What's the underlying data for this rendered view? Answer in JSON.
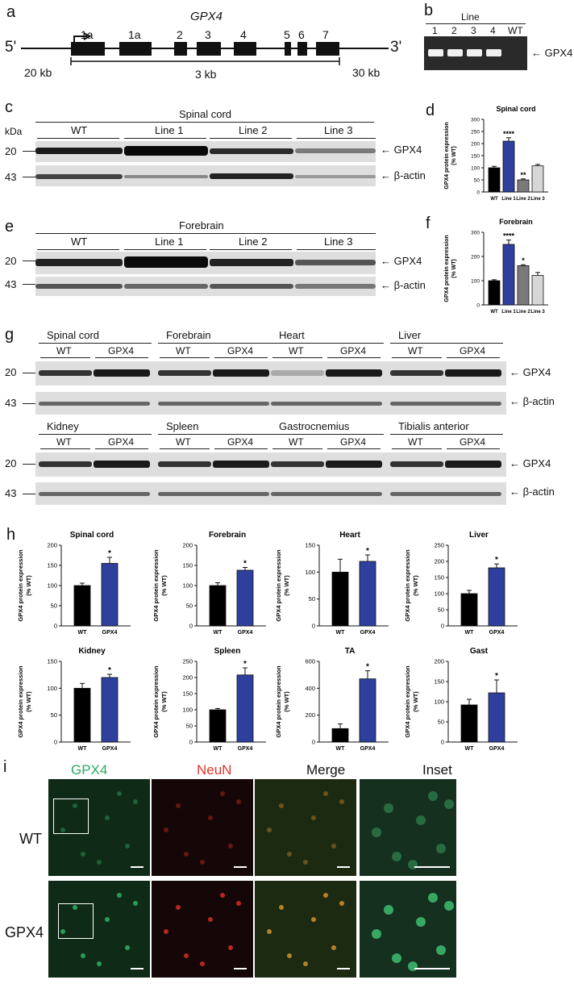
{
  "panels": {
    "a": "a",
    "b": "b",
    "c": "c",
    "d": "d",
    "e": "e",
    "f": "f",
    "g": "g",
    "h": "h",
    "i": "i"
  },
  "gene": {
    "title": "GPX4",
    "five": "5'",
    "three": "3'",
    "exons": [
      "1a",
      "1a",
      "2",
      "3",
      "4",
      "5",
      "6",
      "7"
    ],
    "left_len": "20 kb",
    "mid_len": "3 kb",
    "right_len": "30 kb"
  },
  "gel": {
    "header": "Line",
    "lanes": [
      "1",
      "2",
      "3",
      "4",
      "WT"
    ],
    "band_label": "GPX4"
  },
  "blot_c": {
    "title": "Spinal cord",
    "kda": "kDa",
    "groups": [
      "WT",
      "Line 1",
      "Line 2",
      "Line 3"
    ],
    "markers": [
      "20",
      "43"
    ],
    "labels": [
      "GPX4",
      "β-actin"
    ]
  },
  "blot_e": {
    "title": "Forebrain",
    "groups": [
      "WT",
      "Line 1",
      "Line 2",
      "Line 3"
    ],
    "markers": [
      "20",
      "43"
    ],
    "labels": [
      "GPX4",
      "β-actin"
    ]
  },
  "blot_g": {
    "top_tissues": [
      "Spinal cord",
      "Forebrain",
      "Heart",
      "Liver"
    ],
    "bottom_tissues": [
      "Kidney",
      "Spleen",
      "Gastrocnemius",
      "Tibialis anterior"
    ],
    "sub": [
      "WT",
      "GPX4"
    ],
    "markers": [
      "20",
      "43"
    ],
    "labels": [
      "GPX4",
      "β-actin"
    ]
  },
  "ylabel1": "GPX4 protein expression",
  "ylabel2": "(% WT)",
  "chart_data": [
    {
      "type": "bar",
      "title": "Spinal cord",
      "categories": [
        "WT",
        "Line 1",
        "Line 2",
        "Line 3"
      ],
      "values": [
        100,
        210,
        50,
        108
      ],
      "errors": [
        6,
        14,
        4,
        6
      ],
      "ylim": [
        0,
        300
      ],
      "yticks": [
        0,
        50,
        100,
        150,
        200,
        250,
        300
      ],
      "sig": [
        "",
        "****",
        "**",
        ""
      ],
      "colors": [
        "#000000",
        "#2e3f9e",
        "#7a7a7a",
        "#d6d6d6"
      ]
    },
    {
      "type": "bar",
      "title": "Forebrain",
      "categories": [
        "WT",
        "Line 1",
        "Line 2",
        "Line 3"
      ],
      "values": [
        100,
        250,
        162,
        122
      ],
      "errors": [
        4,
        18,
        4,
        12
      ],
      "ylim": [
        0,
        300
      ],
      "yticks": [
        0,
        100,
        200,
        300
      ],
      "sig": [
        "",
        "****",
        "*",
        ""
      ],
      "colors": [
        "#000000",
        "#2e3f9e",
        "#7a7a7a",
        "#d6d6d6"
      ]
    },
    {
      "type": "bar",
      "title": "Spinal cord",
      "categories": [
        "WT",
        "GPX4"
      ],
      "values": [
        100,
        155
      ],
      "errors": [
        6,
        15
      ],
      "ylim": [
        0,
        200
      ],
      "yticks": [
        0,
        50,
        100,
        150,
        200
      ],
      "sig": [
        "",
        "*"
      ],
      "colors": [
        "#000000",
        "#2e3f9e"
      ]
    },
    {
      "type": "bar",
      "title": "Forebrain",
      "categories": [
        "WT",
        "GPX4"
      ],
      "values": [
        100,
        138
      ],
      "errors": [
        7,
        7
      ],
      "ylim": [
        0,
        200
      ],
      "yticks": [
        0,
        50,
        100,
        150,
        200
      ],
      "sig": [
        "",
        "*"
      ],
      "colors": [
        "#000000",
        "#2e3f9e"
      ]
    },
    {
      "type": "bar",
      "title": "Heart",
      "categories": [
        "WT",
        "GPX4"
      ],
      "values": [
        100,
        120
      ],
      "errors": [
        24,
        12
      ],
      "ylim": [
        0,
        150
      ],
      "yticks": [
        0,
        50,
        100,
        150
      ],
      "sig": [
        "",
        "*"
      ],
      "colors": [
        "#000000",
        "#2e3f9e"
      ]
    },
    {
      "type": "bar",
      "title": "Liver",
      "categories": [
        "WT",
        "GPX4"
      ],
      "values": [
        100,
        180
      ],
      "errors": [
        10,
        12
      ],
      "ylim": [
        0,
        250
      ],
      "yticks": [
        0,
        50,
        100,
        150,
        200,
        250
      ],
      "sig": [
        "",
        "*"
      ],
      "colors": [
        "#000000",
        "#2e3f9e"
      ]
    },
    {
      "type": "bar",
      "title": "Kidney",
      "categories": [
        "WT",
        "GPX4"
      ],
      "values": [
        100,
        120
      ],
      "errors": [
        9,
        6
      ],
      "ylim": [
        0,
        150
      ],
      "yticks": [
        0,
        50,
        100,
        150
      ],
      "sig": [
        "",
        "*"
      ],
      "colors": [
        "#000000",
        "#2e3f9e"
      ]
    },
    {
      "type": "bar",
      "title": "Spleen",
      "categories": [
        "WT",
        "GPX4"
      ],
      "values": [
        100,
        208
      ],
      "errors": [
        4,
        22
      ],
      "ylim": [
        0,
        250
      ],
      "yticks": [
        0,
        50,
        100,
        150,
        200,
        250
      ],
      "sig": [
        "",
        "*"
      ],
      "colors": [
        "#000000",
        "#2e3f9e"
      ]
    },
    {
      "type": "bar",
      "title": "TA",
      "categories": [
        "WT",
        "GPX4"
      ],
      "values": [
        100,
        470
      ],
      "errors": [
        35,
        60
      ],
      "ylim": [
        0,
        600
      ],
      "yticks": [
        0,
        200,
        400,
        600
      ],
      "sig": [
        "",
        "*"
      ],
      "colors": [
        "#000000",
        "#2e3f9e"
      ]
    },
    {
      "type": "bar",
      "title": "Gast",
      "categories": [
        "WT",
        "GPX4"
      ],
      "values": [
        92,
        122
      ],
      "errors": [
        14,
        32
      ],
      "ylim": [
        0,
        200
      ],
      "yticks": [
        0,
        50,
        100,
        150,
        200
      ],
      "sig": [
        "",
        "*"
      ],
      "colors": [
        "#000000",
        "#2e3f9e"
      ]
    }
  ],
  "micro": {
    "headers": [
      "GPX4",
      "NeuN",
      "Merge",
      "Inset"
    ],
    "header_colors": [
      "#2fa862",
      "#e0332b",
      "#222222",
      "#222222"
    ],
    "rows": [
      "WT",
      "GPX4"
    ]
  }
}
